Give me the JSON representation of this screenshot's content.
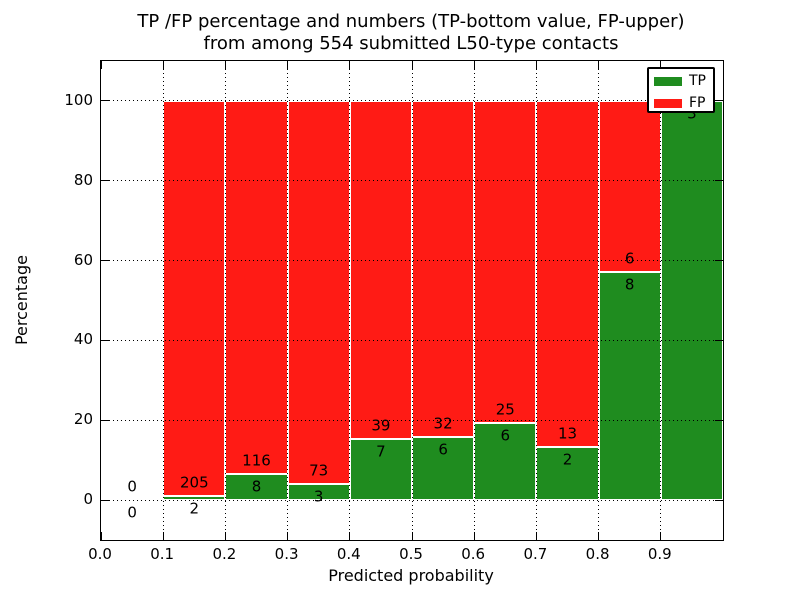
{
  "title": {
    "line1": "TP /FP percentage and numbers (TP-bottom value, FP-upper)",
    "line2": "from among 554 submitted L50-type contacts"
  },
  "axes": {
    "xlabel": "Predicted probability",
    "ylabel": "Percentage"
  },
  "chart_data": {
    "type": "bar",
    "stacked": true,
    "title": "TP /FP percentage and numbers (TP-bottom value, FP-upper) from among 554 submitted L50-type contacts",
    "xlabel": "Predicted probability",
    "ylabel": "Percentage",
    "xlim": [
      0.0,
      1.0
    ],
    "ylim": [
      -10,
      110
    ],
    "xticks": [
      "0.0",
      "0.1",
      "0.2",
      "0.3",
      "0.4",
      "0.5",
      "0.6",
      "0.7",
      "0.8",
      "0.9"
    ],
    "yticks": [
      0,
      20,
      40,
      60,
      80,
      100
    ],
    "grid": "dotted black, drawn above bars",
    "bin_edges": [
      0.0,
      0.1,
      0.2,
      0.3,
      0.4,
      0.5,
      0.6,
      0.7,
      0.8,
      0.9,
      1.0
    ],
    "series": [
      {
        "name": "TP",
        "color": "#1F8C1F",
        "counts": [
          0,
          2,
          8,
          3,
          7,
          6,
          6,
          2,
          8,
          3
        ]
      },
      {
        "name": "FP",
        "color": "#FF1B15",
        "counts": [
          0,
          205,
          116,
          73,
          39,
          32,
          25,
          13,
          6,
          0
        ]
      }
    ],
    "tp_percent_of_bin": [
      0,
      0.97,
      6.45,
      3.95,
      15.22,
      15.79,
      19.35,
      13.33,
      57.14,
      100.0
    ],
    "bar_total_percent": 100,
    "bar_edge_color": "#FFFFFF",
    "legend": {
      "position": "upper right",
      "entries": [
        {
          "label": "TP",
          "color": "#1F8C1F"
        },
        {
          "label": "FP",
          "color": "#FF1B15"
        }
      ]
    }
  }
}
